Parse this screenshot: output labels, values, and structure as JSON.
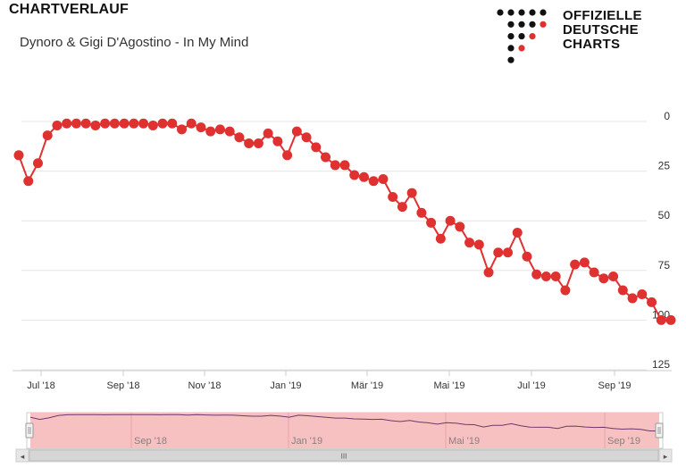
{
  "header": {
    "title": "CHARTVERLAUF"
  },
  "song": {
    "subtitle": "Dynoro & Gigi D'Agostino - In My Mind"
  },
  "logo": {
    "lines": [
      "OFFIZIELLE",
      "DEUTSCHE",
      "CHARTS"
    ],
    "accent": "#e03131"
  },
  "colors": {
    "series": "#e03131",
    "grid": "#e6e6e6",
    "navigator_fill": "#f7c1c1",
    "navigator_line": "#6b3a6b"
  },
  "chart_data": {
    "type": "line",
    "title": "",
    "xlabel": "",
    "ylabel": "",
    "y_reversed": true,
    "ylim": [
      0,
      125
    ],
    "yticks": [
      0,
      25,
      50,
      75,
      100,
      125
    ],
    "x_tick_labels": [
      "Jul '18",
      "Sep '18",
      "Nov '18",
      "Jan '19",
      "Mär '19",
      "Mai '19",
      "Jul '19",
      "Sep '19"
    ],
    "grid": true,
    "legend": "none",
    "series": [
      {
        "values": [
          17,
          30,
          21,
          7,
          2,
          1,
          1,
          1,
          2,
          1,
          1,
          1,
          1,
          1,
          2,
          1,
          1,
          4,
          1,
          3,
          5,
          4,
          5,
          8,
          11,
          11,
          6,
          10,
          17,
          5,
          8,
          13,
          18,
          22,
          22,
          27,
          28,
          30,
          29,
          38,
          43,
          36,
          46,
          51,
          59,
          50,
          53,
          61,
          62,
          76,
          66,
          66,
          56,
          68,
          77,
          78,
          78,
          85,
          72,
          71,
          76,
          79,
          78,
          85,
          89,
          87,
          91,
          100,
          100
        ]
      }
    ]
  },
  "navigator": {
    "labels": [
      "Sep '18",
      "Jan '19",
      "Mai '19",
      "Sep '19"
    ],
    "scroll_grip": "III",
    "left_arrow": "◂",
    "right_arrow": "▸"
  }
}
